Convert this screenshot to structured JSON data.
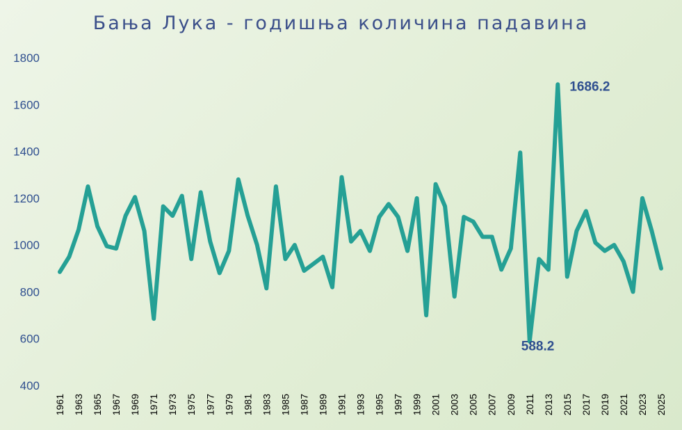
{
  "chart_data": {
    "type": "line",
    "title": "Бања Лука - годишња количина падавина",
    "xlabel": "",
    "ylabel": "",
    "ylim": [
      400,
      1800
    ],
    "yticks": [
      400,
      600,
      800,
      1000,
      1200,
      1400,
      1600,
      1800
    ],
    "x": [
      1961,
      1962,
      1963,
      1964,
      1965,
      1966,
      1967,
      1968,
      1969,
      1970,
      1971,
      1972,
      1973,
      1974,
      1975,
      1976,
      1977,
      1978,
      1979,
      1980,
      1981,
      1982,
      1983,
      1984,
      1985,
      1986,
      1987,
      1988,
      1989,
      1990,
      1991,
      1992,
      1993,
      1994,
      1995,
      1996,
      1997,
      1998,
      1999,
      2000,
      2001,
      2002,
      2003,
      2004,
      2005,
      2006,
      2007,
      2008,
      2009,
      2010,
      2011,
      2012,
      2013,
      2014,
      2015,
      2016,
      2017,
      2018,
      2019,
      2020,
      2021,
      2022,
      2023,
      2024,
      2025
    ],
    "xtick_labels": [
      "1961",
      "1963",
      "1965",
      "1967",
      "1969",
      "1971",
      "1973",
      "1975",
      "1977",
      "1979",
      "1981",
      "1983",
      "1985",
      "1987",
      "1989",
      "1991",
      "1993",
      "1995",
      "1997",
      "1999",
      "2001",
      "2003",
      "2005",
      "2007",
      "2009",
      "2011",
      "2013",
      "2015",
      "2017",
      "2019",
      "2021",
      "2023",
      "2025"
    ],
    "series": [
      {
        "color": "#25a095",
        "values": [
          885,
          950,
          1065,
          1250,
          1080,
          995,
          985,
          1125,
          1205,
          1060,
          685,
          1165,
          1125,
          1210,
          940,
          1225,
          1015,
          880,
          975,
          1280,
          1125,
          1000,
          815,
          1250,
          940,
          1000,
          890,
          920,
          950,
          820,
          1290,
          1015,
          1060,
          975,
          1120,
          1175,
          1120,
          975,
          1200,
          700,
          1260,
          1165,
          780,
          1120,
          1100,
          1035,
          1035,
          895,
          985,
          1395,
          588.2,
          940,
          895,
          1686.2,
          865,
          1060,
          1145,
          1010,
          975,
          1000,
          930,
          800,
          1200,
          1060,
          900
        ]
      }
    ],
    "annotations": [
      {
        "text": "1686.2",
        "x": 2014,
        "y": 1686.2
      },
      {
        "text": "588.2",
        "x": 2011,
        "y": 588.2
      }
    ],
    "grid": false,
    "legend": "none"
  }
}
